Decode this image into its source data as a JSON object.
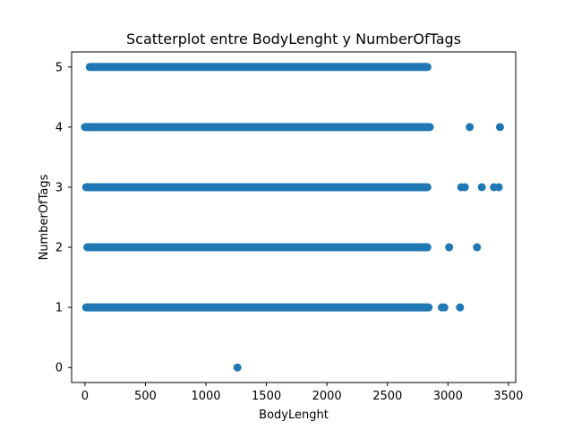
{
  "chart_data": {
    "type": "scatter",
    "title": "Scatterplot entre BodyLenght y NumberOfTags",
    "xlabel": "BodyLenght",
    "ylabel": "NumberOfTags",
    "xlim": [
      -110,
      3560
    ],
    "ylim": [
      -0.25,
      5.25
    ],
    "xticks": [
      0,
      500,
      1000,
      1500,
      2000,
      2500,
      3000,
      3500
    ],
    "xtick_labels": [
      "0",
      "500",
      "1000",
      "1500",
      "2000",
      "2500",
      "3000",
      "3500"
    ],
    "yticks": [
      0,
      1,
      2,
      3,
      4,
      5
    ],
    "ytick_labels": [
      "0",
      "1",
      "2",
      "3",
      "4",
      "5"
    ],
    "grid": false,
    "marker_color": "#1f77b4",
    "dense_bands": [
      {
        "y": 5,
        "x_start": 40,
        "x_end": 2830
      },
      {
        "y": 4,
        "x_start": 0,
        "x_end": 2850
      },
      {
        "y": 3,
        "x_start": 10,
        "x_end": 2830
      },
      {
        "y": 2,
        "x_start": 20,
        "x_end": 2830
      },
      {
        "y": 1,
        "x_start": 10,
        "x_end": 2840
      }
    ],
    "points": [
      {
        "x": 1260,
        "y": 0
      },
      {
        "x": 3180,
        "y": 4
      },
      {
        "x": 3430,
        "y": 4
      },
      {
        "x": 3110,
        "y": 3
      },
      {
        "x": 3140,
        "y": 3
      },
      {
        "x": 3280,
        "y": 3
      },
      {
        "x": 3380,
        "y": 3
      },
      {
        "x": 3420,
        "y": 3
      },
      {
        "x": 3010,
        "y": 2
      },
      {
        "x": 3240,
        "y": 2
      },
      {
        "x": 2950,
        "y": 1
      },
      {
        "x": 2970,
        "y": 1
      },
      {
        "x": 3100,
        "y": 1
      }
    ]
  }
}
